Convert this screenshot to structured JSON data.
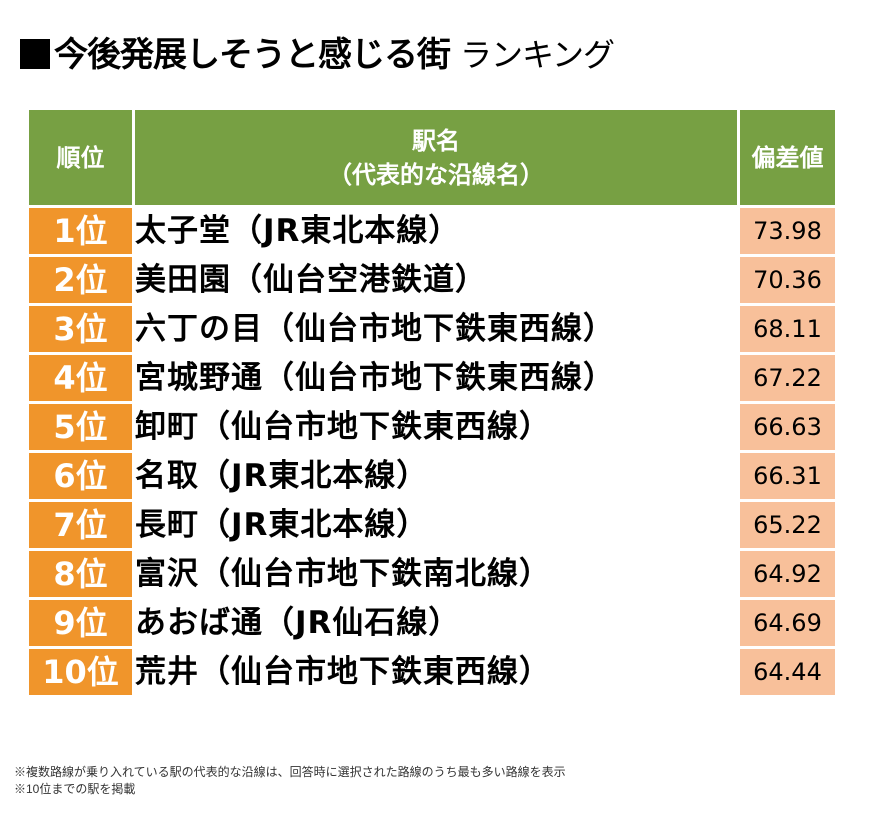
{
  "title": {
    "main": "今後発展しそうと感じる街",
    "sub": "ランキング"
  },
  "table": {
    "headers": {
      "rank": "順位",
      "station_line1": "駅名",
      "station_line2": "（代表的な沿線名）",
      "score": "偏差値"
    },
    "rows": [
      {
        "rank": "1位",
        "name": "太子堂（JR東北本線）",
        "score": "73.98"
      },
      {
        "rank": "2位",
        "name": "美田園（仙台空港鉄道）",
        "score": "70.36"
      },
      {
        "rank": "3位",
        "name": "六丁の目（仙台市地下鉄東西線）",
        "score": "68.11"
      },
      {
        "rank": "4位",
        "name": "宮城野通（仙台市地下鉄東西線）",
        "score": "67.22"
      },
      {
        "rank": "5位",
        "name": "卸町（仙台市地下鉄東西線）",
        "score": "66.63"
      },
      {
        "rank": "6位",
        "name": "名取（JR東北本線）",
        "score": "66.31"
      },
      {
        "rank": "7位",
        "name": "長町（JR東北本線）",
        "score": "65.22"
      },
      {
        "rank": "8位",
        "name": "富沢（仙台市地下鉄南北線）",
        "score": "64.92"
      },
      {
        "rank": "9位",
        "name": "あおば通（JR仙石線）",
        "score": "64.69"
      },
      {
        "rank": "10位",
        "name": "荒井（仙台市地下鉄東西線）",
        "score": "64.44"
      }
    ]
  },
  "notes": [
    "※複数路線が乗り入れている駅の代表的な沿線は、回答時に選択された路線のうち最も多い路線を表示",
    "※10位までの駅を掲載"
  ],
  "colors": {
    "header": "#77a043",
    "rank": "#f0952b",
    "score": "#f8c09a"
  }
}
